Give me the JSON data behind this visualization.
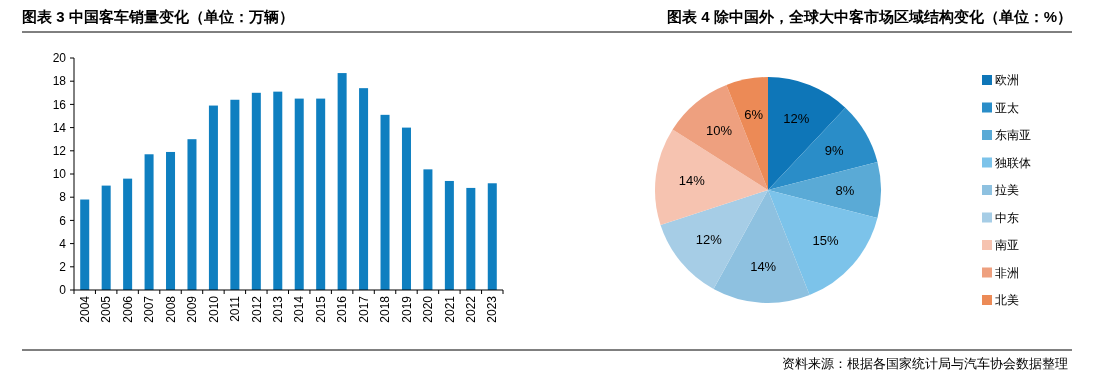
{
  "chart_data": [
    {
      "type": "bar",
      "title": "图表 3  中国客车销量变化（单位：万辆）",
      "categories": [
        "2004",
        "2005",
        "2006",
        "2007",
        "2008",
        "2009",
        "2010",
        "2011",
        "2012",
        "2013",
        "2014",
        "2015",
        "2016",
        "2017",
        "2018",
        "2019",
        "2020",
        "2021",
        "2022",
        "2023"
      ],
      "values": [
        7.8,
        9.0,
        9.6,
        11.7,
        11.9,
        13.0,
        15.9,
        16.4,
        17.0,
        17.1,
        16.5,
        16.5,
        18.7,
        17.4,
        15.1,
        14.0,
        10.4,
        9.4,
        8.8,
        9.2
      ],
      "color": "#0f7fc0",
      "ylim": [
        0,
        20
      ],
      "yticks": [
        0,
        2,
        4,
        6,
        8,
        10,
        12,
        14,
        16,
        18,
        20
      ],
      "grid": false
    },
    {
      "type": "pie",
      "title": "图表 4  除中国外，全球大中客市场区域结构变化（单位：%）",
      "categories": [
        "欧洲",
        "亚太",
        "东南亚",
        "独联体",
        "拉美",
        "中东",
        "南亚",
        "非洲",
        "北美"
      ],
      "values": [
        12,
        9,
        8,
        15,
        14,
        12,
        14,
        10,
        6
      ],
      "colors": [
        "#0e76b8",
        "#2a8dc8",
        "#5aaad6",
        "#7cc3ea",
        "#8ec1e0",
        "#a6cde6",
        "#f6c3b0",
        "#eea07f",
        "#ec8a56"
      ],
      "value_labels": [
        "12%",
        "9%",
        "8%",
        "15%",
        "14%",
        "12%",
        "14%",
        "10%",
        "6%"
      ],
      "legend": "right",
      "annotations": [
        "资料来源：根据各国家统计局与汽车协会数据整理"
      ]
    }
  ]
}
